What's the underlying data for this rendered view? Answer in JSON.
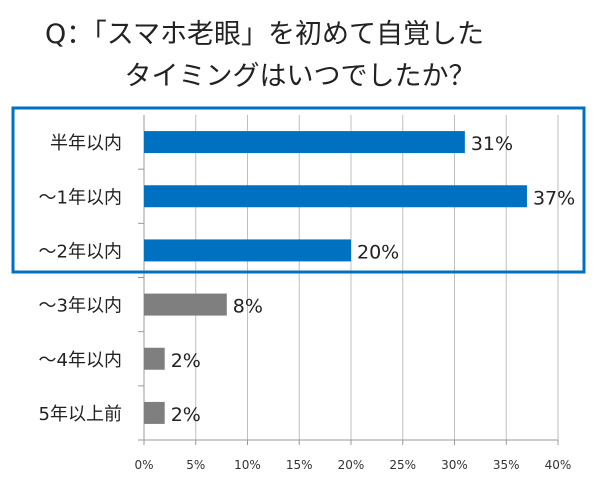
{
  "chart_data": {
    "type": "bar",
    "orientation": "horizontal",
    "title_lines": [
      "Q：「スマホ老眼」を初めて自覚した",
      "タイミングはいつでしたか？"
    ],
    "categories": [
      "半年以内",
      "～1年以内",
      "～2年以内",
      "～3年以内",
      "～4年以内",
      "5年以上前"
    ],
    "values": [
      31,
      37,
      20,
      8,
      2,
      2
    ],
    "data_labels": [
      "31%",
      "37%",
      "20%",
      "8%",
      "2%",
      "2%"
    ],
    "highlighted": [
      true,
      true,
      true,
      false,
      false,
      false
    ],
    "xlim": [
      0,
      40
    ],
    "xticks": [
      0,
      5,
      10,
      15,
      20,
      25,
      30,
      35,
      40
    ],
    "xtick_labels": [
      "0%",
      "5%",
      "10%",
      "15%",
      "20%",
      "25%",
      "30%",
      "35%",
      "40%"
    ],
    "grid": "vertical",
    "colors": {
      "highlight": "#0070c0",
      "other": "#7f7f7f",
      "box": "#0070c0",
      "grid": "#bfbfbf"
    }
  }
}
